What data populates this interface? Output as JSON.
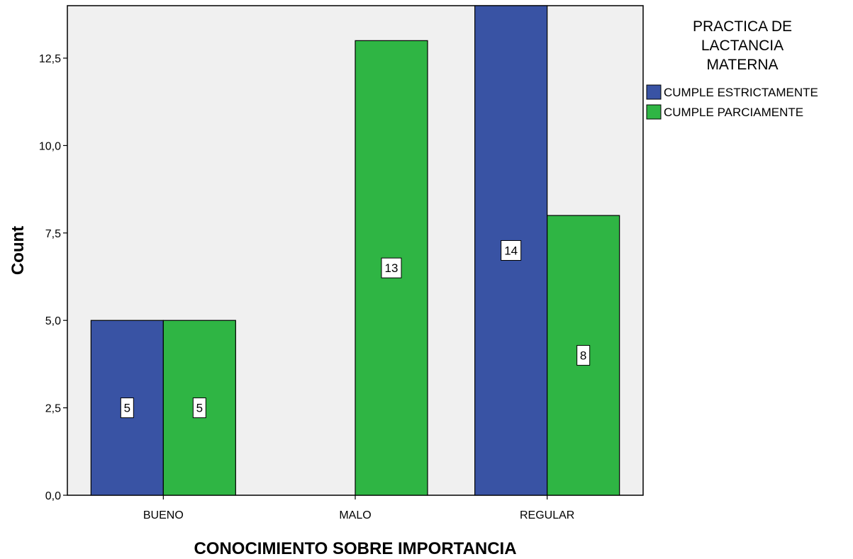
{
  "chart_data": {
    "type": "bar",
    "categories": [
      "BUENO",
      "MALO",
      "REGULAR"
    ],
    "series": [
      {
        "name": "CUMPLE ESTRICTAMENTE",
        "values": [
          5,
          0,
          14
        ],
        "color": "#3953a4"
      },
      {
        "name": "CUMPLE PARCIAMENTE",
        "values": [
          5,
          13,
          8
        ],
        "color": "#2fb544"
      }
    ],
    "xlabel": "CONOCIMIENTO SOBRE IMPORTANCIA",
    "ylabel": "Count",
    "ylim": [
      0,
      14
    ],
    "yticks": [
      {
        "value": 0,
        "label": "0,0"
      },
      {
        "value": 2.5,
        "label": "2,5"
      },
      {
        "value": 5,
        "label": "5,0"
      },
      {
        "value": 7.5,
        "label": "7,5"
      },
      {
        "value": 10,
        "label": "10,0"
      },
      {
        "value": 12.5,
        "label": "12,5"
      }
    ],
    "legend": {
      "title_lines": [
        "PRACTICA DE",
        "LACTANCIA",
        "MATERNA"
      ],
      "position": "right"
    },
    "grid": false,
    "plot_background": "#f0f0f0"
  }
}
